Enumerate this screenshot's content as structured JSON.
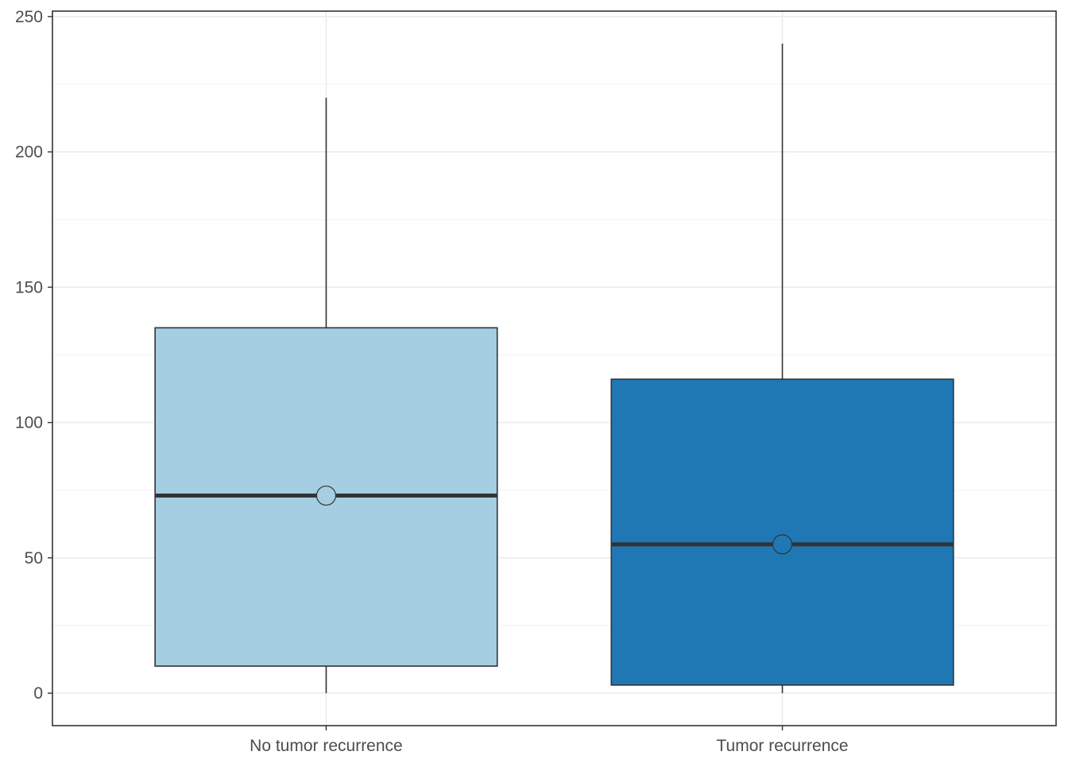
{
  "chart_data": {
    "type": "boxplot",
    "title": "",
    "xlabel": "",
    "ylabel": "",
    "categories": [
      "No tumor recurrence",
      "Tumor recurrence"
    ],
    "boxes": [
      {
        "category": "No tumor recurrence",
        "min": 0,
        "q1": 10,
        "median": 73,
        "q3": 135,
        "max": 220,
        "mean": 73,
        "color": "#a6cee3"
      },
      {
        "category": "Tumor recurrence",
        "min": 0,
        "q1": 3,
        "median": 55,
        "q3": 116,
        "max": 240,
        "mean": 55,
        "color": "#1f78b4"
      }
    ],
    "ylim": [
      -12,
      252
    ],
    "yticks": [
      0,
      50,
      100,
      150,
      200,
      250
    ],
    "yticks_minor": [
      25,
      75,
      125,
      175,
      225
    ],
    "grid": true,
    "legend": "none"
  }
}
